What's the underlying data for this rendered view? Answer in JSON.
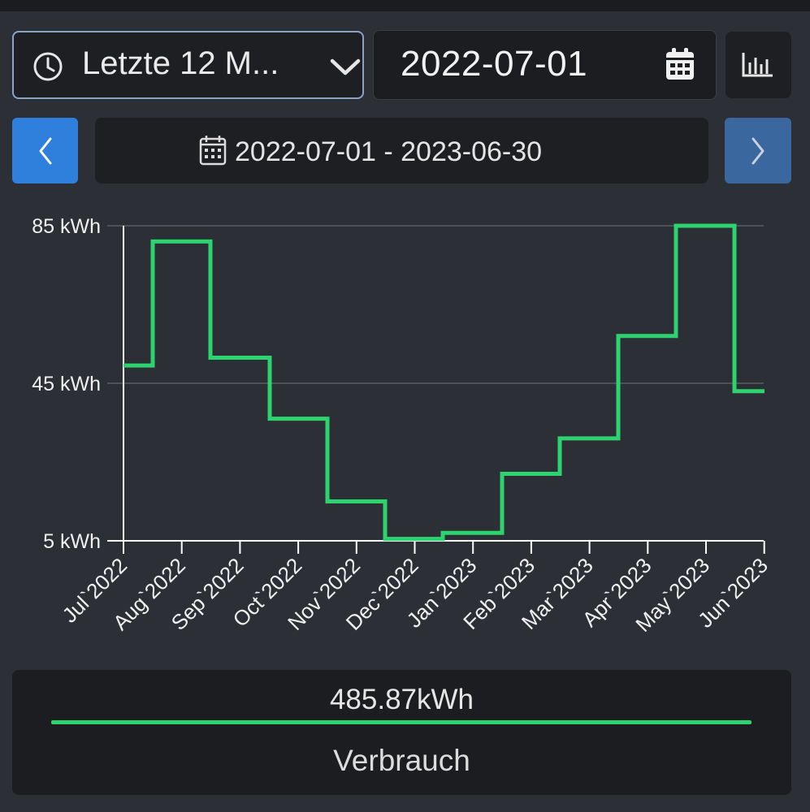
{
  "controls": {
    "range_label": "Letzte 12 M...",
    "date_value": "2022-07-01",
    "period_label": "2022-07-01 - 2023-06-30"
  },
  "icons": {
    "clock": "clock-icon",
    "chevron": "chevron-down-icon",
    "calendar": "calendar-icon",
    "chart": "bar-chart-icon",
    "prev": "chevron-left-icon",
    "next": "chevron-right-icon"
  },
  "colors": {
    "accent": "#2f7fdc",
    "series": "#2dd36f",
    "next_button": "#3a679d"
  },
  "chart_data": {
    "type": "line",
    "step": true,
    "categories": [
      "Jul`2022",
      "Aug`2022",
      "Sep`2022",
      "Oct`2022",
      "Nov`2022",
      "Dec`2022",
      "Jan`2023",
      "Feb`2023",
      "Mar`2023",
      "Apr`2023",
      "May`2023",
      "Jun`2023"
    ],
    "series": [
      {
        "name": "Verbrauch",
        "values": [
          49.5,
          81,
          51.5,
          36,
          15,
          5.5,
          7,
          22,
          31,
          57,
          85,
          43
        ]
      }
    ],
    "yticks": [
      "5 kWh",
      "45 kWh",
      "85 kWh"
    ],
    "ytick_values": [
      5,
      45,
      85
    ],
    "ylim": [
      5,
      85
    ],
    "grid": true
  },
  "summary": {
    "total": "485.87kWh",
    "legend": "Verbrauch"
  }
}
